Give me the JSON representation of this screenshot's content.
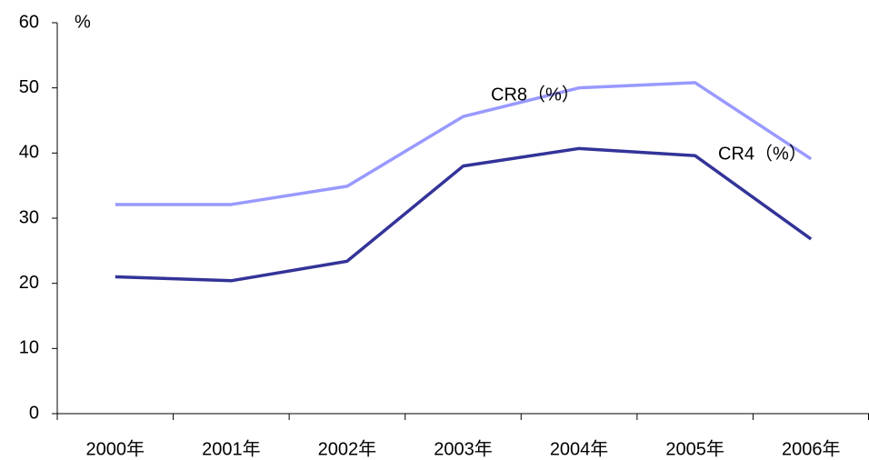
{
  "chart_data": {
    "type": "line",
    "y_label": "%",
    "categories": [
      "2000年",
      "2001年",
      "2002年",
      "2003年",
      "2004年",
      "2005年",
      "2006年"
    ],
    "series": [
      {
        "name": "CR8（%）",
        "color": "#9999ff",
        "values": [
          32.1,
          32.1,
          34.9,
          45.6,
          50.0,
          50.8,
          39.1
        ]
      },
      {
        "name": "CR4（%）",
        "color": "#333399",
        "values": [
          21.0,
          20.4,
          23.4,
          38.0,
          40.7,
          39.6,
          26.8
        ]
      }
    ],
    "ylim": [
      0,
      60
    ],
    "yticks": [
      0,
      10,
      20,
      30,
      40,
      50,
      60
    ],
    "grid": false
  }
}
